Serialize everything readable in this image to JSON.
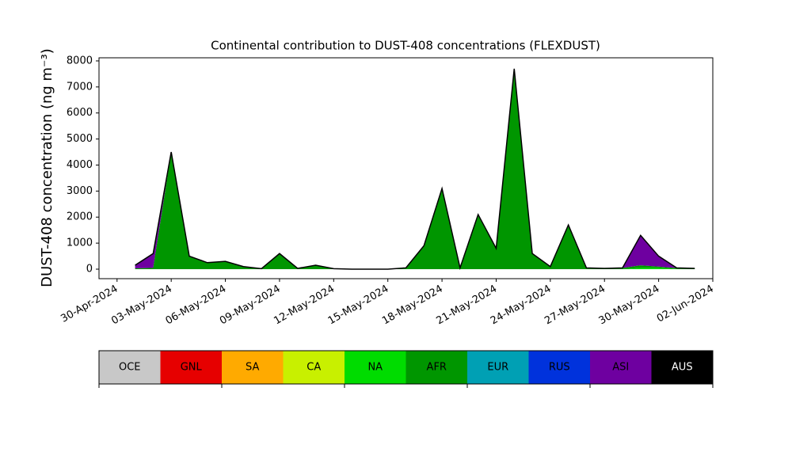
{
  "chart_data": {
    "type": "stacked-area",
    "title": "Continental contribution to DUST-408 concentrations (FLEXDUST)",
    "ylabel": "DUST-408 concentration (ng m⁻³)",
    "x": [
      "2024-05-01",
      "2024-05-02",
      "2024-05-03",
      "2024-05-04",
      "2024-05-05",
      "2024-05-06",
      "2024-05-07",
      "2024-05-08",
      "2024-05-09",
      "2024-05-10",
      "2024-05-11",
      "2024-05-12",
      "2024-05-13",
      "2024-05-14",
      "2024-05-15",
      "2024-05-16",
      "2024-05-17",
      "2024-05-18",
      "2024-05-19",
      "2024-05-20",
      "2024-05-21",
      "2024-05-22",
      "2024-05-23",
      "2024-05-24",
      "2024-05-25",
      "2024-05-26",
      "2024-05-27",
      "2024-05-28",
      "2024-05-29",
      "2024-05-30",
      "2024-05-31",
      "2024-06-01"
    ],
    "xlim": [
      "2024-04-29",
      "2024-06-02"
    ],
    "xticks": [
      {
        "value": "2024-04-30",
        "label": "30-Apr-2024"
      },
      {
        "value": "2024-05-03",
        "label": "03-May-2024"
      },
      {
        "value": "2024-05-06",
        "label": "06-May-2024"
      },
      {
        "value": "2024-05-09",
        "label": "09-May-2024"
      },
      {
        "value": "2024-05-12",
        "label": "12-May-2024"
      },
      {
        "value": "2024-05-15",
        "label": "15-May-2024"
      },
      {
        "value": "2024-05-18",
        "label": "18-May-2024"
      },
      {
        "value": "2024-05-21",
        "label": "21-May-2024"
      },
      {
        "value": "2024-05-24",
        "label": "24-May-2024"
      },
      {
        "value": "2024-05-27",
        "label": "27-May-2024"
      },
      {
        "value": "2024-05-30",
        "label": "30-May-2024"
      },
      {
        "value": "2024-06-02",
        "label": "02-Jun-2024"
      }
    ],
    "ylim": [
      -365,
      8120
    ],
    "yticks": [
      0,
      1000,
      2000,
      3000,
      4000,
      5000,
      6000,
      7000,
      8000
    ],
    "series": [
      {
        "name": "OCE",
        "color": "#c8c8c8",
        "values": [
          0,
          0,
          0,
          0,
          0,
          0,
          0,
          0,
          0,
          0,
          0,
          0,
          0,
          0,
          0,
          0,
          0,
          0,
          0,
          0,
          0,
          0,
          0,
          0,
          0,
          0,
          0,
          0,
          0,
          0,
          0,
          0
        ]
      },
      {
        "name": "GNL",
        "color": "#e60000",
        "values": [
          0,
          0,
          0,
          0,
          0,
          0,
          0,
          0,
          0,
          0,
          0,
          0,
          0,
          0,
          0,
          0,
          0,
          0,
          0,
          0,
          0,
          0,
          0,
          0,
          0,
          0,
          0,
          0,
          0,
          0,
          0,
          0
        ]
      },
      {
        "name": "SA",
        "color": "#ffaa00",
        "values": [
          0,
          0,
          0,
          0,
          0,
          0,
          0,
          0,
          0,
          0,
          0,
          0,
          0,
          0,
          0,
          0,
          0,
          0,
          0,
          0,
          0,
          0,
          0,
          0,
          0,
          0,
          0,
          0,
          0,
          0,
          0,
          0
        ]
      },
      {
        "name": "CA",
        "color": "#c8f000",
        "values": [
          0,
          0,
          0,
          0,
          0,
          0,
          0,
          0,
          0,
          0,
          0,
          0,
          0,
          0,
          0,
          0,
          0,
          0,
          0,
          0,
          0,
          0,
          0,
          0,
          0,
          0,
          0,
          0,
          0,
          0,
          0,
          0
        ]
      },
      {
        "name": "NA",
        "color": "#00dc00",
        "values": [
          0,
          0,
          0,
          0,
          0,
          0,
          0,
          0,
          0,
          0,
          0,
          0,
          0,
          0,
          0,
          0,
          0,
          0,
          0,
          0,
          0,
          0,
          0,
          0,
          0,
          0,
          0,
          0,
          50,
          50,
          0,
          0
        ]
      },
      {
        "name": "AFR",
        "color": "#009600",
        "values": [
          30,
          50,
          4500,
          500,
          250,
          300,
          100,
          20,
          600,
          30,
          150,
          20,
          0,
          0,
          0,
          50,
          900,
          3100,
          50,
          2100,
          800,
          7700,
          600,
          100,
          1700,
          50,
          30,
          50,
          100,
          50,
          40,
          30
        ]
      },
      {
        "name": "EUR",
        "color": "#00a0b4",
        "values": [
          0,
          0,
          0,
          0,
          0,
          0,
          0,
          0,
          0,
          0,
          0,
          0,
          0,
          0,
          0,
          0,
          0,
          0,
          0,
          0,
          0,
          0,
          0,
          0,
          0,
          0,
          0,
          0,
          0,
          0,
          0,
          0
        ]
      },
      {
        "name": "RUS",
        "color": "#0032dc",
        "values": [
          0,
          0,
          0,
          0,
          0,
          0,
          0,
          0,
          0,
          0,
          0,
          0,
          0,
          0,
          0,
          0,
          0,
          0,
          0,
          0,
          0,
          0,
          0,
          0,
          0,
          0,
          0,
          0,
          0,
          0,
          0,
          0
        ]
      },
      {
        "name": "ASI",
        "color": "#6e00a0",
        "values": [
          120,
          550,
          0,
          0,
          0,
          0,
          0,
          0,
          0,
          0,
          0,
          0,
          0,
          0,
          0,
          0,
          0,
          0,
          0,
          0,
          0,
          0,
          0,
          0,
          0,
          0,
          0,
          0,
          1150,
          400,
          10,
          0
        ]
      },
      {
        "name": "AUS",
        "color": "#000000",
        "values": [
          0,
          0,
          0,
          0,
          0,
          0,
          0,
          0,
          0,
          0,
          0,
          0,
          0,
          0,
          0,
          0,
          0,
          0,
          0,
          0,
          0,
          0,
          0,
          0,
          0,
          0,
          0,
          0,
          0,
          0,
          0,
          0
        ]
      }
    ]
  }
}
